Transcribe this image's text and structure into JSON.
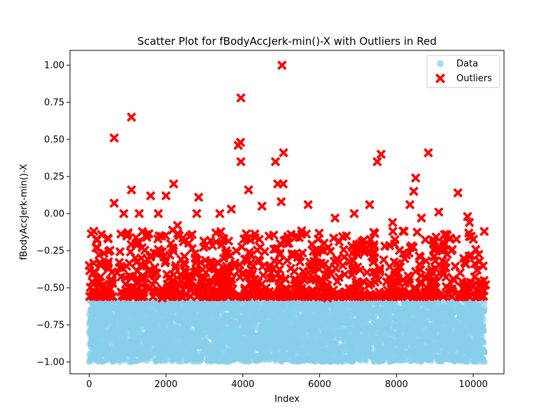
{
  "chart_data": {
    "type": "scatter",
    "title": "Scatter Plot for fBodyAccJerk-min()-X with Outliers in Red",
    "xlabel": "Index",
    "ylabel": "fBodyAccJerk-min()-X",
    "xlim": [
      -500,
      10800
    ],
    "ylim": [
      -1.08,
      1.1
    ],
    "xticks": [
      0,
      2000,
      4000,
      6000,
      8000,
      10000
    ],
    "xtick_labels": [
      "0",
      "2000",
      "4000",
      "6000",
      "8000",
      "10000"
    ],
    "yticks": [
      -1.0,
      -0.75,
      -0.5,
      -0.25,
      0.0,
      0.25,
      0.5,
      0.75,
      1.0
    ],
    "ytick_labels": [
      "−1.00",
      "−0.75",
      "−0.50",
      "−0.25",
      "0.00",
      "0.25",
      "0.50",
      "0.75",
      "1.00"
    ],
    "grid": false,
    "legend_position": "top-right",
    "n_points": 10299,
    "outlier_threshold": -0.58,
    "series": [
      {
        "name": "Data",
        "marker": "circle",
        "color": "#87ceeb",
        "y_range": [
          -1.0,
          -0.58
        ],
        "points": [
          [
            0,
            -1.0
          ],
          [
            120,
            -0.85
          ],
          [
            250,
            -0.92
          ],
          [
            400,
            -0.7
          ],
          [
            560,
            -0.98
          ],
          [
            700,
            -0.76
          ],
          [
            850,
            -0.88
          ],
          [
            1000,
            -0.63
          ],
          [
            1200,
            -0.95
          ],
          [
            1400,
            -0.72
          ],
          [
            1600,
            -0.84
          ],
          [
            1800,
            -0.99
          ],
          [
            2000,
            -0.67
          ],
          [
            2200,
            -0.91
          ],
          [
            2400,
            -0.78
          ],
          [
            2600,
            -0.96
          ],
          [
            2800,
            -0.74
          ],
          [
            3000,
            -0.87
          ],
          [
            3200,
            -0.62
          ],
          [
            3400,
            -0.93
          ],
          [
            3600,
            -0.8
          ],
          [
            3800,
            -0.69
          ],
          [
            4000,
            -0.97
          ],
          [
            4200,
            -0.83
          ],
          [
            4400,
            -0.71
          ],
          [
            4600,
            -0.9
          ],
          [
            4800,
            -0.65
          ],
          [
            5000,
            -0.94
          ],
          [
            5200,
            -0.77
          ],
          [
            5400,
            -0.99
          ],
          [
            5600,
            -0.68
          ],
          [
            5800,
            -0.86
          ],
          [
            6000,
            -0.75
          ],
          [
            6200,
            -0.95
          ],
          [
            6400,
            -0.64
          ],
          [
            6600,
            -0.89
          ],
          [
            6800,
            -0.73
          ],
          [
            7000,
            -0.98
          ],
          [
            7200,
            -0.81
          ],
          [
            7400,
            -0.66
          ],
          [
            7600,
            -0.92
          ],
          [
            7800,
            -0.79
          ],
          [
            8000,
            -0.97
          ],
          [
            8200,
            -0.7
          ],
          [
            8400,
            -0.88
          ],
          [
            8600,
            -0.61
          ],
          [
            8800,
            -0.94
          ],
          [
            9000,
            -0.76
          ],
          [
            9200,
            -0.99
          ],
          [
            9400,
            -0.69
          ],
          [
            9600,
            -0.85
          ],
          [
            9800,
            -0.63
          ],
          [
            10000,
            -0.96
          ],
          [
            10200,
            -0.78
          ],
          [
            10300,
            -1.0
          ]
        ]
      },
      {
        "name": "Outliers",
        "marker": "X",
        "color": "#ff0000",
        "points": [
          [
            650,
            0.51
          ],
          [
            1100,
            0.65
          ],
          [
            3950,
            0.78
          ],
          [
            5020,
            1.0
          ],
          [
            3880,
            0.46
          ],
          [
            3940,
            0.48
          ],
          [
            3950,
            0.35
          ],
          [
            5060,
            0.41
          ],
          [
            4850,
            0.35
          ],
          [
            7500,
            0.35
          ],
          [
            7600,
            0.4
          ],
          [
            8830,
            0.41
          ],
          [
            4910,
            0.2
          ],
          [
            5050,
            0.2
          ],
          [
            2200,
            0.2
          ],
          [
            1100,
            0.16
          ],
          [
            1600,
            0.12
          ],
          [
            2000,
            0.12
          ],
          [
            4150,
            0.16
          ],
          [
            8500,
            0.24
          ],
          [
            8450,
            0.15
          ],
          [
            9600,
            0.14
          ],
          [
            650,
            0.07
          ],
          [
            2850,
            0.11
          ],
          [
            5000,
            0.08
          ],
          [
            5700,
            0.06
          ],
          [
            7300,
            0.06
          ],
          [
            8350,
            0.06
          ],
          [
            900,
            0.0
          ],
          [
            1300,
            0.0
          ],
          [
            1800,
            0.0
          ],
          [
            2800,
            0.0
          ],
          [
            3400,
            0.0
          ],
          [
            3700,
            0.03
          ],
          [
            4500,
            0.05
          ],
          [
            6400,
            -0.03
          ],
          [
            6900,
            0.0
          ],
          [
            7900,
            -0.06
          ],
          [
            8650,
            -0.03
          ],
          [
            9100,
            0.01
          ],
          [
            9850,
            -0.02
          ],
          [
            200,
            -0.18
          ],
          [
            180,
            -0.23
          ],
          [
            1000,
            -0.14
          ],
          [
            1500,
            -0.16
          ],
          [
            2300,
            -0.08
          ],
          [
            3300,
            -0.13
          ],
          [
            4200,
            -0.18
          ],
          [
            5200,
            -0.2
          ],
          [
            6100,
            -0.25
          ],
          [
            6700,
            -0.15
          ],
          [
            7100,
            -0.19
          ],
          [
            7700,
            -0.22
          ],
          [
            8200,
            -0.12
          ],
          [
            9300,
            -0.14
          ],
          [
            9900,
            -0.06
          ],
          [
            100,
            -0.4
          ],
          [
            300,
            -0.35
          ],
          [
            600,
            -0.45
          ],
          [
            1200,
            -0.3
          ],
          [
            1700,
            -0.42
          ],
          [
            2100,
            -0.28
          ],
          [
            2500,
            -0.38
          ],
          [
            2900,
            -0.33
          ],
          [
            3200,
            -0.46
          ],
          [
            3600,
            -0.27
          ],
          [
            4000,
            -0.4
          ],
          [
            4400,
            -0.31
          ],
          [
            4700,
            -0.37
          ],
          [
            5100,
            -0.44
          ],
          [
            5500,
            -0.48
          ],
          [
            5900,
            -0.29
          ],
          [
            6300,
            -0.41
          ],
          [
            6600,
            -0.35
          ],
          [
            7000,
            -0.47
          ],
          [
            7400,
            -0.3
          ],
          [
            7800,
            -0.43
          ],
          [
            8100,
            -0.36
          ],
          [
            8500,
            -0.39
          ],
          [
            8900,
            -0.49
          ],
          [
            9200,
            -0.32
          ],
          [
            9500,
            -0.45
          ],
          [
            9800,
            -0.34
          ],
          [
            10100,
            -0.38
          ],
          [
            10320,
            -0.48
          ],
          [
            10280,
            -0.52
          ],
          [
            150,
            -0.55
          ],
          [
            500,
            -0.52
          ],
          [
            900,
            -0.56
          ],
          [
            1400,
            -0.53
          ],
          [
            1900,
            -0.57
          ],
          [
            2400,
            -0.54
          ],
          [
            3000,
            -0.55
          ],
          [
            3500,
            -0.51
          ],
          [
            4100,
            -0.56
          ],
          [
            4600,
            -0.53
          ],
          [
            5300,
            -0.55
          ],
          [
            5800,
            -0.52
          ],
          [
            6200,
            -0.57
          ],
          [
            6800,
            -0.54
          ],
          [
            7300,
            -0.56
          ],
          [
            7900,
            -0.53
          ],
          [
            8400,
            -0.55
          ],
          [
            9000,
            -0.51
          ],
          [
            9700,
            -0.56
          ],
          [
            10200,
            -0.54
          ]
        ]
      }
    ]
  }
}
